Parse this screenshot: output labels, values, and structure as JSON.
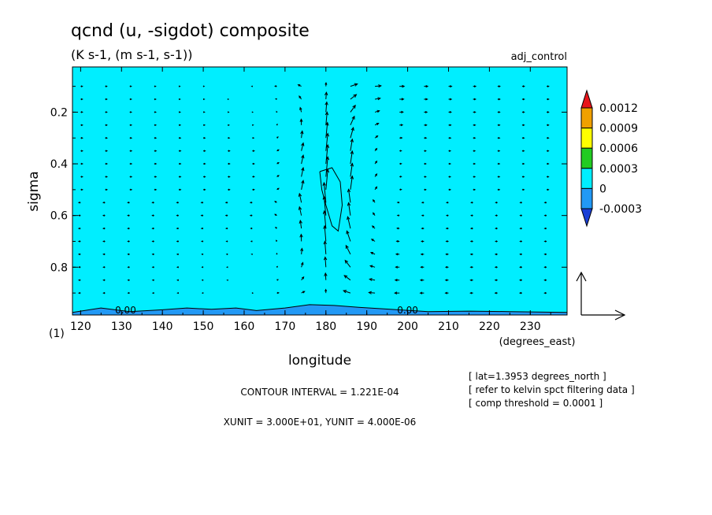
{
  "title": "qcnd (u, -sigdot) composite",
  "units": "(K s-1, (m s-1, s-1))",
  "run_label": "adj_control",
  "chart_data": {
    "type": "heatmap",
    "overlay": "vector",
    "x_axis": {
      "label": "longitude",
      "units": "(degrees_east)",
      "ticks": [
        120,
        130,
        140,
        150,
        160,
        170,
        180,
        190,
        200,
        210,
        220,
        230
      ],
      "tick_labels": [
        "120",
        "130",
        "140",
        "150",
        "160",
        "170",
        "180",
        "190",
        "200",
        "210",
        "220",
        "230"
      ],
      "range": [
        118,
        239
      ]
    },
    "y_axis": {
      "label": "sigma",
      "ticks": [
        0.2,
        0.4,
        0.6,
        0.8
      ],
      "tick_labels": [
        "0.2",
        "0.4",
        "0.6",
        "0.8"
      ],
      "range": [
        0.025,
        0.985
      ],
      "inverted": true
    },
    "corner_label": "(1)",
    "contour_labels": [
      {
        "text": "0.00",
        "lon": 131,
        "sigma": 0.967
      },
      {
        "text": "0.00",
        "lon": 200,
        "sigma": 0.967
      }
    ],
    "zero_contour": [
      [
        118,
        0.975
      ],
      [
        125,
        0.958
      ],
      [
        132,
        0.972
      ],
      [
        140,
        0.965
      ],
      [
        146,
        0.958
      ],
      [
        152,
        0.963
      ],
      [
        158,
        0.958
      ],
      [
        163,
        0.968
      ],
      [
        170,
        0.958
      ],
      [
        176,
        0.945
      ],
      [
        182,
        0.948
      ],
      [
        188,
        0.955
      ],
      [
        195,
        0.962
      ],
      [
        205,
        0.972
      ],
      [
        215,
        0.97
      ],
      [
        225,
        0.972
      ],
      [
        239,
        0.975
      ]
    ],
    "inner_contour": [
      [
        178.5,
        0.43
      ],
      [
        181.5,
        0.415
      ],
      [
        183.5,
        0.47
      ],
      [
        184,
        0.56
      ],
      [
        183,
        0.66
      ],
      [
        181.5,
        0.64
      ],
      [
        180,
        0.56
      ],
      [
        179,
        0.5
      ],
      [
        178.5,
        0.43
      ]
    ],
    "colorbar": {
      "levels": [
        "0.0012",
        "0.0009",
        "0.0006",
        "0.0003",
        "0",
        "-0.0003"
      ],
      "colors": [
        "#e8141a",
        "#f0a000",
        "#ffff00",
        "#22cc22",
        "#00eeff",
        "#2299f5"
      ],
      "min_arrow_color": "#1a3fd6"
    },
    "field_colors": {
      "background": "#00eeff",
      "below_zero": "#2299f5"
    },
    "vector_reference": {
      "xunit": 30.0,
      "yunit": 4e-06
    },
    "vector_grid": {
      "lon_step": 6,
      "sigma_step": 0.05
    },
    "vector_field_description": "strong upward (negative sigdot) motion centered near 180E, converging at low levels and diverging aloft"
  },
  "info": {
    "lat": "[ lat=1.3953 degrees_north ]",
    "filter": "[ refer to kelvin spct filtering data ]",
    "threshold": "[ comp threshold = 0.0001 ]"
  },
  "contour_interval": "CONTOUR INTERVAL = 1.221E-04",
  "units_line": "XUNIT = 3.000E+01, YUNIT = 4.000E-06"
}
